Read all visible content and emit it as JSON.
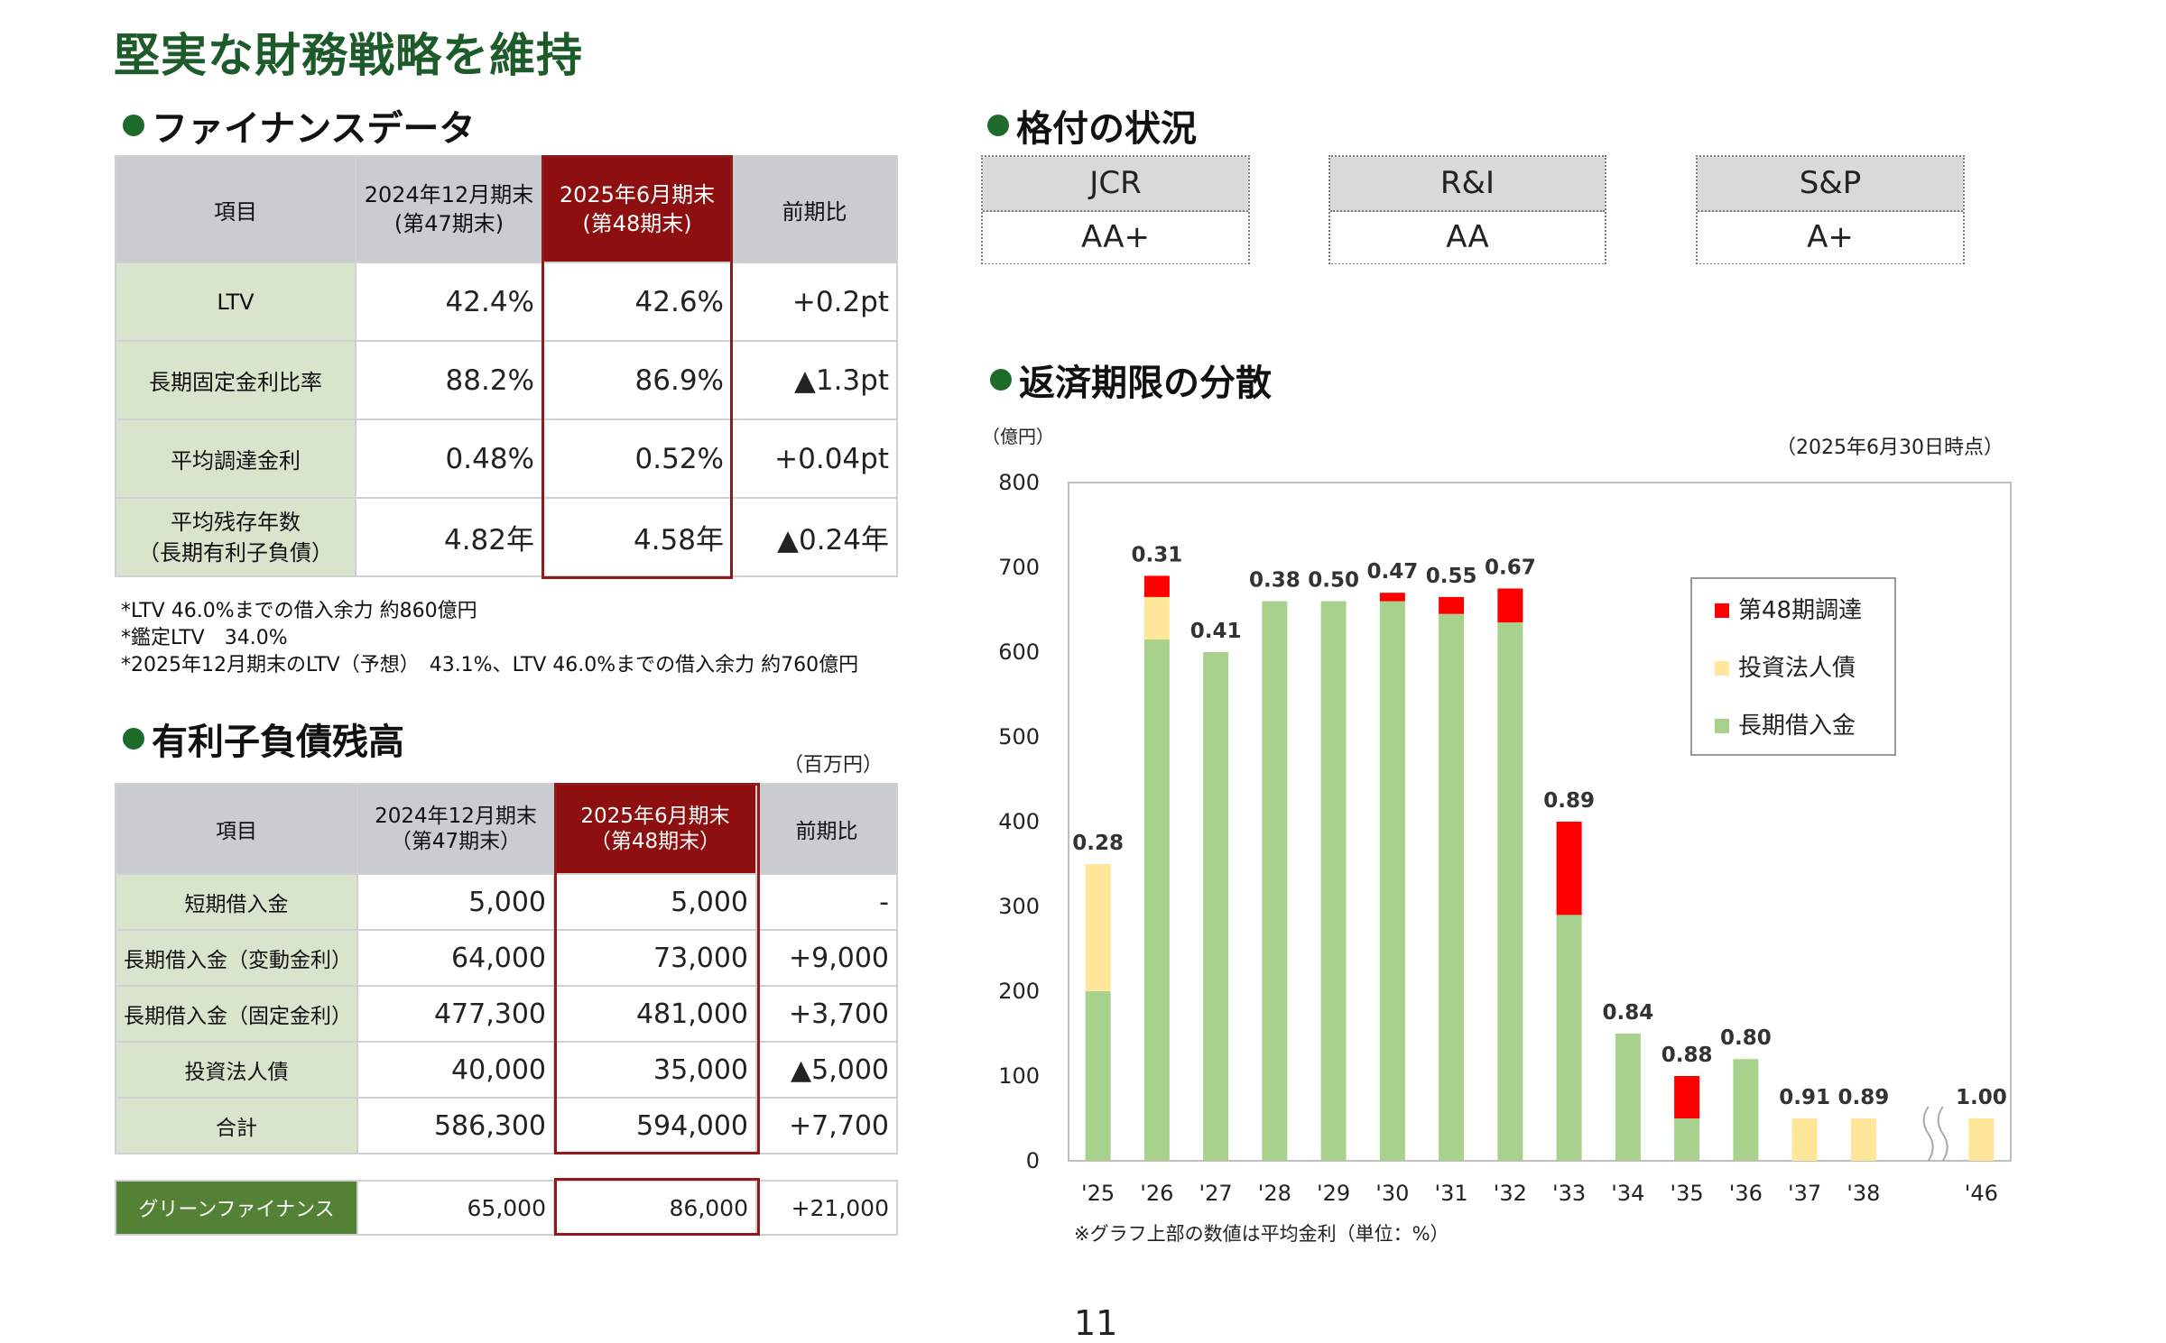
{
  "title": "堅実な財務戦略を維持",
  "sections": {
    "finance": "ファイナンスデータ",
    "rating": "格付の状況",
    "debt": "有利子負債残高",
    "maturity": "返済期限の分散"
  },
  "finance_table": {
    "headers": {
      "item": "項目",
      "prev_line1": "2024年12月期末",
      "prev_line2": "(第47期末)",
      "cur_line1": "2025年6月期末",
      "cur_line2": "(第48期末)",
      "diff": "前期比"
    },
    "rows": [
      {
        "label1": "LTV",
        "label2": "",
        "prev": "42.4%",
        "cur": "42.6%",
        "diff": "+0.2pt"
      },
      {
        "label1": "長期固定金利比率",
        "label2": "",
        "prev": "88.2%",
        "cur": "86.9%",
        "diff": "▲1.3pt"
      },
      {
        "label1": "平均調達金利",
        "label2": "",
        "prev": "0.48%",
        "cur": "0.52%",
        "diff": "+0.04pt"
      },
      {
        "label1": "平均残存年数",
        "label2": "（長期有利子負債）",
        "prev": "4.82年",
        "cur": "4.58年",
        "diff": "▲0.24年"
      }
    ]
  },
  "notes": [
    "*LTV 46.0%までの借入余力 約860億円",
    "*鑑定LTV　34.0%",
    "*2025年12月期末のLTV（予想）　43.1%、LTV 46.0%までの借入余力 約760億円"
  ],
  "debt_unit": "（百万円）",
  "debt_table": {
    "headers": {
      "item": "項目",
      "prev_line1": "2024年12月期末",
      "prev_line2": "（第47期末）",
      "cur_line1": "2025年6月期末",
      "cur_line2": "（第48期末）",
      "diff": "前期比"
    },
    "rows": [
      {
        "label": "短期借入金",
        "prev": "5,000",
        "cur": "5,000",
        "diff": "-"
      },
      {
        "label": "長期借入金（変動金利）",
        "prev": "64,000",
        "cur": "73,000",
        "diff": "+9,000"
      },
      {
        "label": "長期借入金（固定金利）",
        "prev": "477,300",
        "cur": "481,000",
        "diff": "+3,700"
      },
      {
        "label": "投資法人債",
        "prev": "40,000",
        "cur": "35,000",
        "diff": "▲5,000"
      },
      {
        "label": "合計",
        "prev": "586,300",
        "cur": "594,000",
        "diff": "+7,700"
      }
    ],
    "green": {
      "label": "グリーンファイナンス",
      "prev": "65,000",
      "cur": "86,000",
      "diff": "+21,000"
    }
  },
  "ratings": [
    {
      "agency": "JCR",
      "grade": "AA+"
    },
    {
      "agency": "R&I",
      "grade": "AA"
    },
    {
      "agency": "S&P",
      "grade": "A+"
    }
  ],
  "chart_data": {
    "type": "bar",
    "stacked": true,
    "ylabel": "（億円）",
    "as_of": "（2025年6月30日時点）",
    "footnote": "※グラフ上部の数値は平均金利（単位：%）",
    "ylim": [
      0,
      800
    ],
    "yticks": [
      0,
      100,
      200,
      300,
      400,
      500,
      600,
      700,
      800
    ],
    "categories": [
      "'25",
      "'26",
      "'27",
      "'28",
      "'29",
      "'30",
      "'31",
      "'32",
      "'33",
      "'34",
      "'35",
      "'36",
      "'37",
      "'38",
      "'46"
    ],
    "series": [
      {
        "name": "長期借入金",
        "color": "#a9d18e",
        "values": [
          200,
          615,
          600,
          660,
          660,
          660,
          645,
          635,
          290,
          150,
          50,
          120,
          0,
          0,
          0
        ]
      },
      {
        "name": "投資法人債",
        "color": "#ffe699",
        "values": [
          150,
          50,
          0,
          0,
          0,
          0,
          0,
          0,
          0,
          0,
          0,
          0,
          50,
          50,
          50
        ]
      },
      {
        "name": "第48期調達",
        "color": "#ff0000",
        "values": [
          0,
          25,
          0,
          0,
          0,
          10,
          20,
          40,
          110,
          0,
          50,
          0,
          0,
          0,
          0
        ]
      }
    ],
    "rates": [
      "0.28",
      "0.31",
      "0.41",
      "0.38",
      "0.50",
      "0.47",
      "0.55",
      "0.67",
      "0.89",
      "0.84",
      "0.88",
      "0.80",
      "0.91",
      "0.89",
      "1.00"
    ],
    "axis_break": "between '38 and '46",
    "legend_position": "top-right"
  },
  "page_number": "11"
}
